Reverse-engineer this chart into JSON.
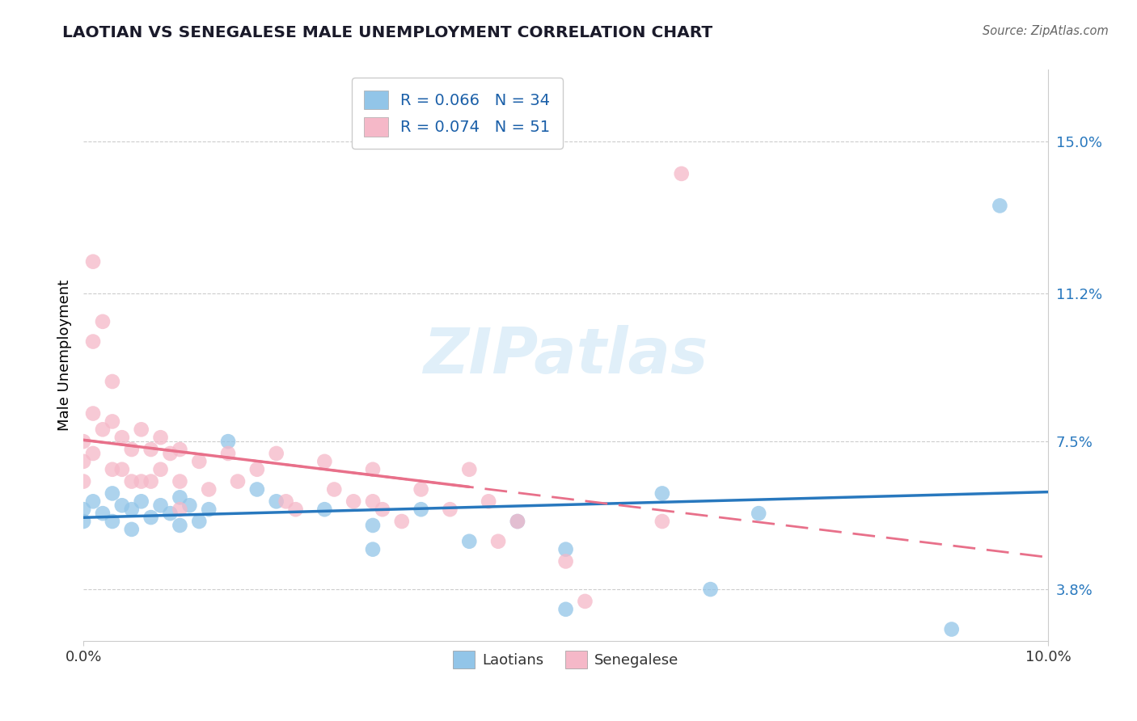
{
  "title": "LAOTIAN VS SENEGALESE MALE UNEMPLOYMENT CORRELATION CHART",
  "source": "Source: ZipAtlas.com",
  "ylabel": "Male Unemployment",
  "yticks": [
    0.038,
    0.075,
    0.112,
    0.15
  ],
  "ytick_labels": [
    "3.8%",
    "7.5%",
    "11.2%",
    "15.0%"
  ],
  "xlim": [
    0.0,
    0.1
  ],
  "ylim": [
    0.025,
    0.168
  ],
  "laotian_color": "#92c5e8",
  "senegalese_color": "#f5b8c8",
  "laotian_R": 0.066,
  "laotian_N": 34,
  "senegalese_R": 0.074,
  "senegalese_N": 51,
  "legend_label_1": "Laotians",
  "legend_label_2": "Senegalese",
  "watermark": "ZIPatlas",
  "laotian_x": [
    0.0,
    0.0,
    0.001,
    0.002,
    0.003,
    0.003,
    0.004,
    0.005,
    0.005,
    0.006,
    0.007,
    0.008,
    0.009,
    0.01,
    0.01,
    0.011,
    0.012,
    0.013,
    0.015,
    0.018,
    0.02,
    0.025,
    0.03,
    0.03,
    0.035,
    0.04,
    0.045,
    0.05,
    0.05,
    0.06,
    0.065,
    0.07,
    0.09,
    0.095
  ],
  "laotian_y": [
    0.058,
    0.055,
    0.06,
    0.057,
    0.062,
    0.055,
    0.059,
    0.058,
    0.053,
    0.06,
    0.056,
    0.059,
    0.057,
    0.061,
    0.054,
    0.059,
    0.055,
    0.058,
    0.075,
    0.063,
    0.06,
    0.058,
    0.054,
    0.048,
    0.058,
    0.05,
    0.055,
    0.048,
    0.033,
    0.062,
    0.038,
    0.057,
    0.028,
    0.134
  ],
  "senegalese_x": [
    0.0,
    0.0,
    0.0,
    0.001,
    0.001,
    0.001,
    0.001,
    0.002,
    0.002,
    0.003,
    0.003,
    0.003,
    0.004,
    0.004,
    0.005,
    0.005,
    0.006,
    0.006,
    0.007,
    0.007,
    0.008,
    0.008,
    0.009,
    0.01,
    0.01,
    0.01,
    0.012,
    0.013,
    0.015,
    0.016,
    0.018,
    0.02,
    0.021,
    0.022,
    0.025,
    0.026,
    0.028,
    0.03,
    0.03,
    0.031,
    0.033,
    0.035,
    0.038,
    0.04,
    0.042,
    0.043,
    0.045,
    0.05,
    0.052,
    0.06,
    0.062
  ],
  "senegalese_y": [
    0.075,
    0.07,
    0.065,
    0.12,
    0.1,
    0.082,
    0.072,
    0.105,
    0.078,
    0.09,
    0.08,
    0.068,
    0.076,
    0.068,
    0.073,
    0.065,
    0.078,
    0.065,
    0.073,
    0.065,
    0.076,
    0.068,
    0.072,
    0.073,
    0.065,
    0.058,
    0.07,
    0.063,
    0.072,
    0.065,
    0.068,
    0.072,
    0.06,
    0.058,
    0.07,
    0.063,
    0.06,
    0.068,
    0.06,
    0.058,
    0.055,
    0.063,
    0.058,
    0.068,
    0.06,
    0.05,
    0.055,
    0.045,
    0.035,
    0.055,
    0.142
  ]
}
